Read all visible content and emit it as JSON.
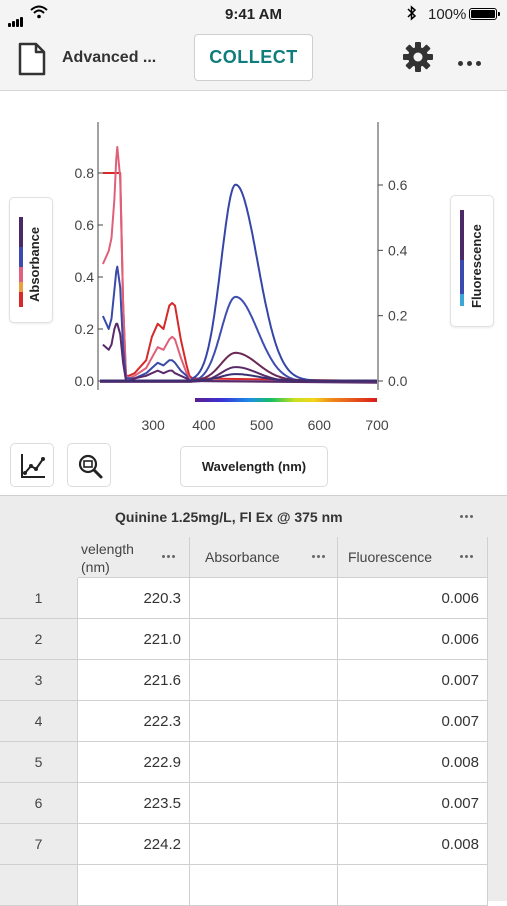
{
  "status_bar": {
    "time": "9:41 AM",
    "battery": "100%"
  },
  "toolbar": {
    "title": "Advanced ...",
    "collect_label": "COLLECT"
  },
  "chart_data": {
    "type": "line",
    "x_ticks": [
      300,
      400,
      500,
      600,
      700
    ],
    "xlim": [
      220,
      700
    ],
    "y_left_ticks": [
      "0.0",
      "0.2",
      "0.4",
      "0.6",
      "0.8"
    ],
    "y_left_lim": [
      -0.05,
      0.8
    ],
    "y_right_ticks": [
      "0.0",
      "0.2",
      "0.4",
      "0.6"
    ],
    "y_right_lim": [
      -0.05,
      0.8
    ],
    "ylabel_left": "Absorbance",
    "ylabel_right": "Fluorescence",
    "xlabel": "Wavelength (nm)",
    "absorbance_series": [
      {
        "color": "#d62a2a",
        "x": [
          225,
          235,
          240,
          245,
          248,
          250,
          255,
          260,
          265,
          270,
          280,
          300,
          310,
          320,
          330,
          340,
          345,
          350,
          360,
          370,
          375,
          380
        ],
        "y": [
          0.8,
          0.8,
          0.8,
          0.8,
          0.8,
          0.8,
          0.8,
          0.3,
          0.02,
          0.02,
          0.03,
          0.08,
          0.17,
          0.22,
          0.2,
          0.29,
          0.3,
          0.29,
          0.16,
          0.06,
          0.02,
          0.01
        ]
      },
      {
        "color": "#e0607a",
        "x": [
          225,
          235,
          240,
          245,
          248,
          250,
          255,
          260,
          265,
          270,
          280,
          300,
          310,
          320,
          330,
          340,
          345,
          350,
          360,
          370,
          375,
          380
        ],
        "y": [
          0.45,
          0.5,
          0.55,
          0.7,
          0.85,
          0.9,
          0.78,
          0.3,
          0.02,
          0.01,
          0.02,
          0.05,
          0.09,
          0.13,
          0.12,
          0.16,
          0.17,
          0.16,
          0.09,
          0.03,
          0.01,
          0.0
        ]
      },
      {
        "color": "#3a4aa8",
        "x": [
          225,
          235,
          240,
          245,
          248,
          250,
          255,
          260,
          265,
          270,
          280,
          300,
          310,
          320,
          330,
          340,
          345,
          350,
          360,
          370,
          375,
          380
        ],
        "y": [
          0.25,
          0.2,
          0.24,
          0.35,
          0.42,
          0.44,
          0.36,
          0.13,
          0.01,
          0.01,
          0.01,
          0.03,
          0.05,
          0.07,
          0.06,
          0.08,
          0.08,
          0.07,
          0.04,
          0.02,
          0.0,
          0.0
        ]
      },
      {
        "color": "#5a2a6a",
        "x": [
          225,
          235,
          240,
          245,
          248,
          250,
          255,
          260,
          265,
          270,
          280,
          300,
          310,
          320,
          330,
          340,
          345,
          350,
          360,
          370,
          375,
          380
        ],
        "y": [
          0.14,
          0.12,
          0.14,
          0.2,
          0.22,
          0.22,
          0.18,
          0.07,
          0.0,
          0.0,
          0.01,
          0.02,
          0.03,
          0.04,
          0.03,
          0.04,
          0.04,
          0.03,
          0.02,
          0.01,
          0.0,
          0.0
        ]
      }
    ],
    "fluorescence_series": [
      {
        "color": "#3546a8",
        "peak": 0.6
      },
      {
        "color": "#3f4db0",
        "peak": 0.26
      },
      {
        "color": "#6a2a55",
        "peak": 0.085
      },
      {
        "color": "#5a2a68",
        "peak": 0.045
      },
      {
        "color": "#3a2f70",
        "peak": 0.02
      }
    ]
  },
  "table": {
    "group_header": "Quinine 1.25mg/L, Fl Ex @ 375 nm",
    "columns": [
      "velength\n(nm)",
      "Absorbance",
      "Fluorescence"
    ],
    "rows": [
      {
        "n": "1",
        "wl": "220.3",
        "abs": "",
        "fl": "0.006"
      },
      {
        "n": "2",
        "wl": "221.0",
        "abs": "",
        "fl": "0.006"
      },
      {
        "n": "3",
        "wl": "221.6",
        "abs": "",
        "fl": "0.007"
      },
      {
        "n": "4",
        "wl": "222.3",
        "abs": "",
        "fl": "0.007"
      },
      {
        "n": "5",
        "wl": "222.9",
        "abs": "",
        "fl": "0.008"
      },
      {
        "n": "6",
        "wl": "223.5",
        "abs": "",
        "fl": "0.007"
      },
      {
        "n": "7",
        "wl": "224.2",
        "abs": "",
        "fl": "0.008"
      }
    ]
  }
}
